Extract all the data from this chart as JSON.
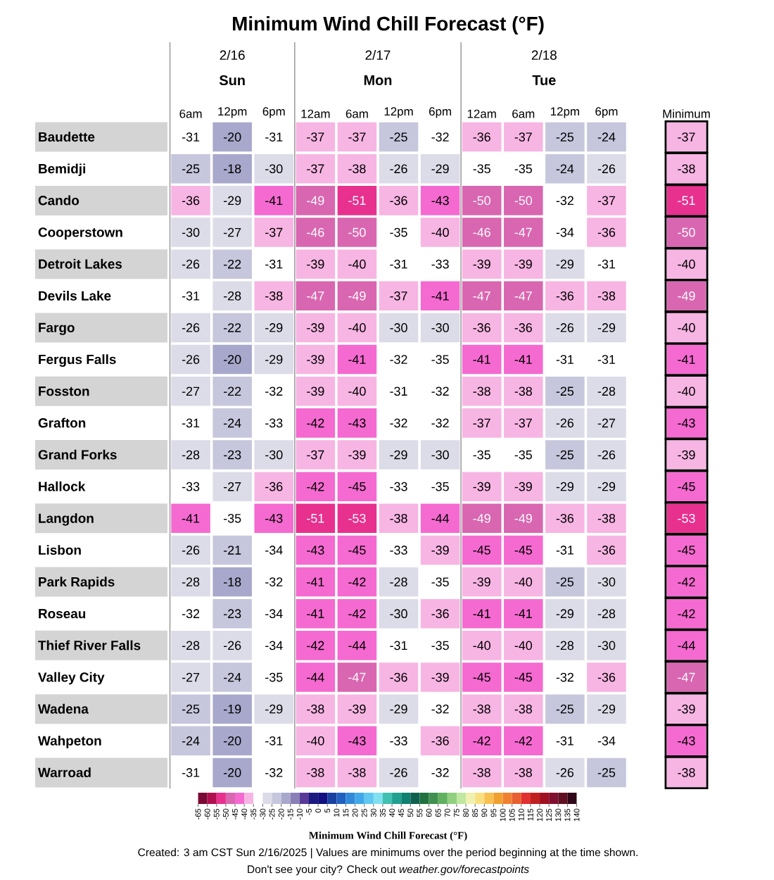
{
  "chart_data": {
    "type": "heatmap",
    "title": "Minimum Wind Chill Forecast (°F)",
    "categories": [
      "6am",
      "12pm",
      "6pm",
      "12am",
      "6am",
      "12pm",
      "6pm",
      "12am",
      "6am",
      "12pm",
      "6pm",
      "Minimum"
    ],
    "y_categories": [
      "Baudette",
      "Bemidji",
      "Cando",
      "Cooperstown",
      "Detroit Lakes",
      "Devils Lake",
      "Fargo",
      "Fergus Falls",
      "Fosston",
      "Grafton",
      "Grand Forks",
      "Hallock",
      "Langdon",
      "Lisbon",
      "Park Rapids",
      "Roseau",
      "Thief River Falls",
      "Valley City",
      "Wadena",
      "Wahpeton",
      "Warroad"
    ],
    "cells": [
      [
        -31,
        -20,
        -31,
        -37,
        -37,
        -25,
        -32,
        -36,
        -37,
        -25,
        -24,
        -37
      ],
      [
        -25,
        -18,
        -30,
        -37,
        -38,
        -26,
        -29,
        -35,
        -35,
        -24,
        -26,
        -38
      ],
      [
        -36,
        -29,
        -41,
        -49,
        -51,
        -36,
        -43,
        -50,
        -50,
        -32,
        -37,
        -51
      ],
      [
        -30,
        -27,
        -37,
        -46,
        -50,
        -35,
        -40,
        -46,
        -47,
        -34,
        -36,
        -50
      ],
      [
        -26,
        -22,
        -31,
        -39,
        -40,
        -31,
        -33,
        -39,
        -39,
        -29,
        -31,
        -40
      ],
      [
        -31,
        -28,
        -38,
        -47,
        -49,
        -37,
        -41,
        -47,
        -47,
        -36,
        -38,
        -49
      ],
      [
        -26,
        -22,
        -29,
        -39,
        -40,
        -30,
        -30,
        -36,
        -36,
        -26,
        -29,
        -40
      ],
      [
        -26,
        -20,
        -29,
        -39,
        -41,
        -32,
        -35,
        -41,
        -41,
        -31,
        -31,
        -41
      ],
      [
        -27,
        -22,
        -32,
        -39,
        -40,
        -31,
        -32,
        -38,
        -38,
        -25,
        -28,
        -40
      ],
      [
        -31,
        -24,
        -33,
        -42,
        -43,
        -32,
        -32,
        -37,
        -37,
        -26,
        -27,
        -43
      ],
      [
        -28,
        -23,
        -30,
        -37,
        -39,
        -29,
        -30,
        -35,
        -35,
        -25,
        -26,
        -39
      ],
      [
        -33,
        -27,
        -36,
        -42,
        -45,
        -33,
        -35,
        -39,
        -39,
        -29,
        -29,
        -45
      ],
      [
        -41,
        -35,
        -43,
        -51,
        -53,
        -38,
        -44,
        -49,
        -49,
        -36,
        -38,
        -53
      ],
      [
        -26,
        -21,
        -34,
        -43,
        -45,
        -33,
        -39,
        -45,
        -45,
        -31,
        -36,
        -45
      ],
      [
        -28,
        -18,
        -32,
        -41,
        -42,
        -28,
        -35,
        -39,
        -40,
        -25,
        -30,
        -42
      ],
      [
        -32,
        -23,
        -34,
        -41,
        -42,
        -30,
        -36,
        -41,
        -41,
        -29,
        -28,
        -42
      ],
      [
        -28,
        -26,
        -34,
        -42,
        -44,
        -31,
        -35,
        -40,
        -40,
        -28,
        -30,
        -44
      ],
      [
        -27,
        -24,
        -35,
        -44,
        -47,
        -36,
        -39,
        -45,
        -45,
        -32,
        -36,
        -47
      ],
      [
        -25,
        -19,
        -29,
        -38,
        -39,
        -29,
        -32,
        -38,
        -38,
        -25,
        -29,
        -39
      ],
      [
        -24,
        -20,
        -31,
        -40,
        -43,
        -33,
        -36,
        -42,
        -42,
        -31,
        -34,
        -43
      ],
      [
        -31,
        -20,
        -32,
        -38,
        -38,
        -26,
        -32,
        -38,
        -38,
        -26,
        -25,
        -38
      ]
    ],
    "data_labels": true,
    "clabel": "Minimum Wind Chill Forecast (°F)",
    "clim": [
      -65,
      140
    ],
    "cticks": [
      -65,
      -60,
      -55,
      -50,
      -45,
      -40,
      -35,
      -30,
      -25,
      -20,
      -15,
      -10,
      -5,
      0,
      5,
      10,
      15,
      20,
      25,
      30,
      35,
      40,
      45,
      50,
      55,
      60,
      65,
      70,
      75,
      80,
      85,
      90,
      95,
      100,
      105,
      110,
      115,
      120,
      125,
      130,
      135,
      140
    ],
    "annotations": [
      "2/16",
      "Sun",
      "2/17",
      "Mon",
      "2/18",
      "Tue",
      "Created: 3 am CST Sun 2/16/2025  |  Values are minimums over the period beginning at the time shown.",
      "Don't see your city? Check out *weather.gov/forecastpoints*"
    ]
  }
}
